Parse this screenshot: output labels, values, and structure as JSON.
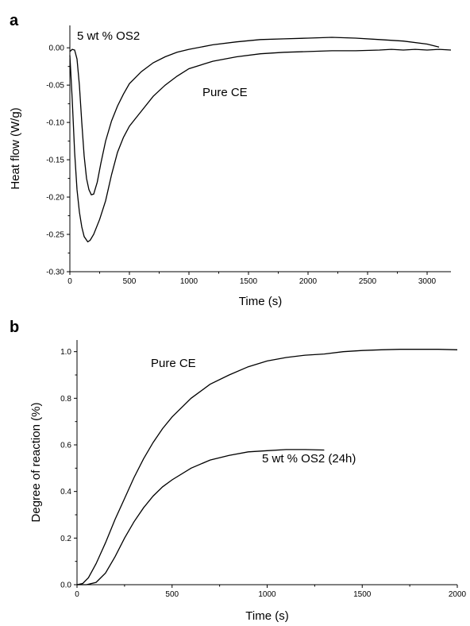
{
  "chart_data": [
    {
      "panel": "a",
      "type": "line",
      "xlabel": "Time (s)",
      "ylabel": "Heat flow (W/g)",
      "xlim": [
        0,
        3200
      ],
      "ylim": [
        -0.3,
        0.03
      ],
      "x_ticks": [
        0,
        500,
        1000,
        1500,
        2000,
        2500,
        3000
      ],
      "y_ticks": [
        "0.00",
        "-0.05",
        "-0.10",
        "-0.15",
        "-0.20",
        "-0.25",
        "-0.30"
      ],
      "annotations": [
        {
          "text": "5 wt % OS2",
          "series": 0
        },
        {
          "text": "Pure CE",
          "series": 1
        }
      ],
      "series": [
        {
          "x": [
            0,
            20,
            40,
            60,
            80,
            100,
            120,
            140,
            160,
            180,
            200,
            230,
            260,
            300,
            350,
            400,
            450,
            500,
            600,
            700,
            800,
            900,
            1000,
            1200,
            1400,
            1600,
            1800,
            2000,
            2200,
            2400,
            2600,
            2800,
            3000,
            3100
          ],
          "y": [
            -0.005,
            -0.002,
            -0.003,
            -0.015,
            -0.05,
            -0.1,
            -0.145,
            -0.175,
            -0.19,
            -0.197,
            -0.196,
            -0.18,
            -0.155,
            -0.125,
            -0.098,
            -0.078,
            -0.062,
            -0.048,
            -0.032,
            -0.02,
            -0.012,
            -0.006,
            -0.002,
            0.004,
            0.008,
            0.011,
            0.012,
            0.013,
            0.014,
            0.013,
            0.011,
            0.009,
            0.005,
            0.001
          ]
        },
        {
          "x": [
            0,
            20,
            40,
            60,
            80,
            100,
            120,
            150,
            170,
            200,
            250,
            300,
            350,
            400,
            450,
            500,
            550,
            600,
            700,
            800,
            900,
            1000,
            1200,
            1400,
            1600,
            1800,
            2000,
            2200,
            2400,
            2600,
            2700,
            2800,
            2900,
            3000,
            3100,
            3200
          ],
          "y": [
            -0.01,
            -0.07,
            -0.14,
            -0.19,
            -0.22,
            -0.24,
            -0.253,
            -0.26,
            -0.258,
            -0.25,
            -0.23,
            -0.205,
            -0.17,
            -0.14,
            -0.12,
            -0.105,
            -0.095,
            -0.085,
            -0.065,
            -0.05,
            -0.038,
            -0.028,
            -0.018,
            -0.012,
            -0.008,
            -0.006,
            -0.005,
            -0.004,
            -0.004,
            -0.003,
            -0.002,
            -0.003,
            -0.002,
            -0.003,
            -0.002,
            -0.003
          ]
        }
      ]
    },
    {
      "panel": "b",
      "type": "line",
      "xlabel": "Time (s)",
      "ylabel": "Degree of reaction (%)",
      "xlim": [
        0,
        2000
      ],
      "ylim": [
        0,
        1.05
      ],
      "x_ticks": [
        0,
        500,
        1000,
        1500,
        2000
      ],
      "y_ticks": [
        "0.0",
        "0.2",
        "0.4",
        "0.6",
        "0.8",
        "1.0"
      ],
      "annotations": [
        {
          "text": "Pure CE",
          "series": 0
        },
        {
          "text": "5 wt % OS2 (24h)",
          "series": 1
        }
      ],
      "series": [
        {
          "x": [
            0,
            30,
            60,
            100,
            150,
            200,
            250,
            300,
            350,
            400,
            450,
            500,
            600,
            700,
            800,
            900,
            1000,
            1100,
            1200,
            1300,
            1400,
            1500,
            1600,
            1700,
            1800,
            1900,
            2000
          ],
          "y": [
            0,
            0.005,
            0.03,
            0.09,
            0.18,
            0.28,
            0.37,
            0.46,
            0.54,
            0.61,
            0.67,
            0.72,
            0.8,
            0.86,
            0.9,
            0.935,
            0.96,
            0.975,
            0.985,
            0.99,
            1.0,
            1.005,
            1.008,
            1.01,
            1.01,
            1.01,
            1.008
          ]
        },
        {
          "x": [
            0,
            50,
            100,
            150,
            200,
            250,
            300,
            350,
            400,
            450,
            500,
            600,
            700,
            800,
            900,
            1000,
            1100,
            1200,
            1300
          ],
          "y": [
            0,
            0.0,
            0.01,
            0.05,
            0.12,
            0.2,
            0.27,
            0.33,
            0.38,
            0.42,
            0.45,
            0.5,
            0.535,
            0.555,
            0.57,
            0.575,
            0.58,
            0.58,
            0.578
          ]
        }
      ]
    }
  ]
}
